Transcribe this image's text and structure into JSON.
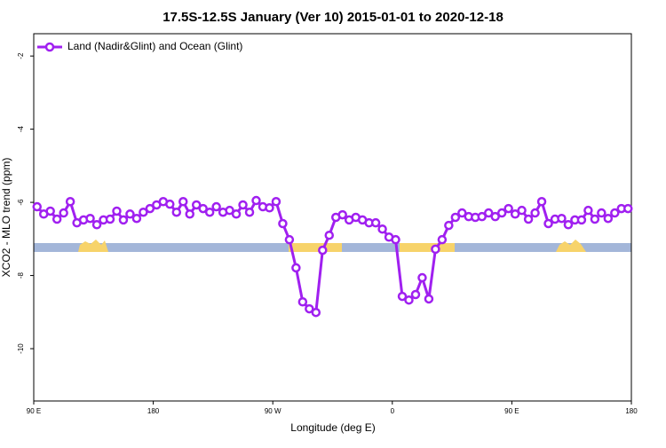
{
  "chart_data": {
    "type": "line",
    "title": "17.5S-12.5S January (Ver 10)   2015-01-01 to 2020-12-18",
    "x_label": "Longitude (deg E)",
    "y_label": "XCO2 - MLO trend (ppm)",
    "x": [
      92.5,
      97.5,
      102.5,
      107.5,
      112.5,
      117.5,
      122.5,
      127.5,
      132.5,
      137.5,
      142.5,
      147.5,
      152.5,
      157.5,
      162.5,
      167.5,
      172.5,
      177.5,
      182.5,
      187.5,
      192.5,
      197.5,
      202.5,
      207.5,
      212.5,
      217.5,
      222.5,
      227.5,
      232.5,
      237.5,
      242.5,
      247.5,
      252.5,
      257.5,
      262.5,
      267.5,
      272.5,
      277.5,
      282.5,
      287.5,
      292.5,
      297.5,
      302.5,
      307.5,
      312.5,
      317.5,
      322.5,
      327.5,
      332.5,
      337.5,
      342.5,
      347.5,
      352.5,
      357.5,
      362.5,
      367.5,
      372.5,
      377.5,
      382.5,
      387.5,
      392.5,
      397.5,
      402.5,
      407.5,
      412.5,
      417.5,
      422.5,
      427.5,
      432.5,
      437.5,
      442.5,
      447.5,
      452.5,
      457.5,
      462.5,
      467.5,
      472.5,
      477.5,
      482.5,
      487.5,
      492.5,
      497.5,
      502.5,
      507.5,
      512.5,
      517.5,
      522.5,
      527.5,
      532.5,
      537.5
    ],
    "series": [
      {
        "name": "Land (Nadir&Glint) and Ocean (Glint)",
        "color": "#a020f0",
        "values": [
          -6.12,
          -6.32,
          -6.24,
          -6.46,
          -6.29,
          -5.98,
          -6.56,
          -6.48,
          -6.44,
          -6.61,
          -6.48,
          -6.46,
          -6.24,
          -6.48,
          -6.32,
          -6.44,
          -6.27,
          -6.17,
          -6.07,
          -5.98,
          -6.05,
          -6.27,
          -5.98,
          -6.32,
          -6.07,
          -6.17,
          -6.27,
          -6.12,
          -6.27,
          -6.22,
          -6.32,
          -6.07,
          -6.27,
          -5.95,
          -6.12,
          -6.15,
          -5.98,
          -6.58,
          -7.02,
          -7.79,
          -8.72,
          -8.91,
          -9.01,
          -7.31,
          -6.9,
          -6.41,
          -6.34,
          -6.48,
          -6.41,
          -6.48,
          -6.56,
          -6.56,
          -6.73,
          -6.95,
          -7.02,
          -8.57,
          -8.67,
          -8.52,
          -8.06,
          -8.64,
          -7.28,
          -7.02,
          -6.63,
          -6.41,
          -6.29,
          -6.39,
          -6.41,
          -6.39,
          -6.29,
          -6.39,
          -6.29,
          -6.17,
          -6.32,
          -6.22,
          -6.46,
          -6.29,
          -5.98,
          -6.58,
          -6.46,
          -6.44,
          -6.61,
          -6.48,
          -6.48,
          -6.22,
          -6.46,
          -6.29,
          -6.44,
          -6.29,
          -6.17,
          -6.17
        ]
      }
    ],
    "xlim": [
      90,
      540
    ],
    "xticks": [
      {
        "value": 90,
        "label": "90 E"
      },
      180,
      {
        "value": 270,
        "label": "90 W"
      },
      {
        "value": 360,
        "label": "0"
      },
      {
        "value": 450,
        "label": "90 E"
      },
      {
        "value": 540,
        "label": "180"
      }
    ],
    "ylim": [
      -11.43,
      -1.39
    ],
    "yticks": [
      -2,
      -4,
      -6,
      -8,
      -10
    ],
    "legend": "top-left"
  }
}
